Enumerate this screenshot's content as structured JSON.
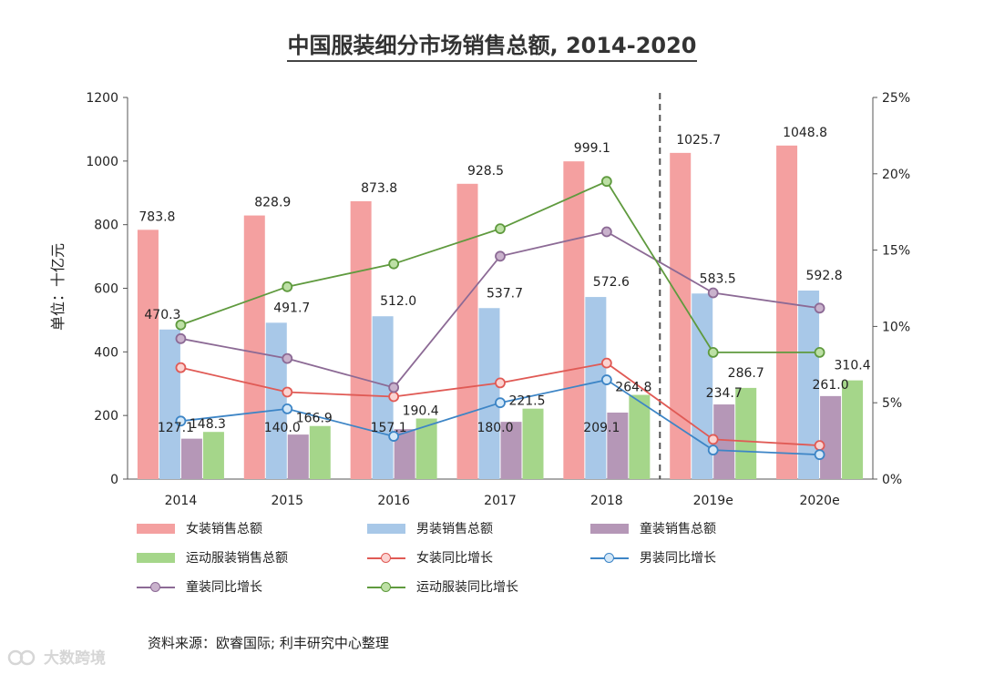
{
  "chart_data": {
    "type": "bar",
    "title": "中国服装细分市场销售总额, 2014-2020",
    "ylabel": "单位：十亿元",
    "ylim": [
      0,
      1200
    ],
    "y2lim": [
      0,
      25
    ],
    "y_ticks": [
      "0",
      "200",
      "400",
      "600",
      "800",
      "1000",
      "1200"
    ],
    "y2_ticks": [
      "0%",
      "5%",
      "10%",
      "15%",
      "20%",
      "25%"
    ],
    "categories": [
      "2014",
      "2015",
      "2016",
      "2017",
      "2018",
      "2019e",
      "2020e"
    ],
    "forecast_divider_after": "2018",
    "bar_series": [
      {
        "name": "女装销售总额",
        "color": "#f4a0a0",
        "values": [
          783.8,
          828.9,
          873.8,
          928.5,
          999.1,
          1025.7,
          1048.8
        ],
        "labels": [
          "783.8",
          "828.9",
          "873.8",
          "928.5",
          "999.1",
          "1025.7",
          "1048.8"
        ]
      },
      {
        "name": "男装销售总额",
        "color": "#a8c8e8",
        "values": [
          470.3,
          491.7,
          512.0,
          537.7,
          572.6,
          583.5,
          592.8
        ],
        "labels": [
          "470.3",
          "491.7",
          "512.0",
          "537.7",
          "572.6",
          "583.5",
          "592.8"
        ]
      },
      {
        "name": "童装销售总额",
        "color": "#b597b7",
        "values": [
          127.1,
          140.0,
          157.1,
          180.0,
          209.1,
          234.7,
          261.0
        ],
        "labels": [
          "127.1",
          "140.0",
          "157.1",
          "180.0",
          "209.1",
          "234.7",
          "261.0"
        ]
      },
      {
        "name": "运动服装销售总额",
        "color": "#a5d68a",
        "values": [
          148.3,
          166.9,
          190.4,
          221.5,
          264.8,
          286.7,
          310.4
        ],
        "labels": [
          "148.3",
          "166.9",
          "190.4",
          "221.5",
          "264.8",
          "286.7",
          "310.4"
        ]
      }
    ],
    "line_series": [
      {
        "name": "女装同比增长",
        "color": "#e05a55",
        "fill": "#fbd3d1",
        "values": [
          7.3,
          5.7,
          5.4,
          6.3,
          7.6,
          2.6,
          2.2
        ]
      },
      {
        "name": "男装同比增长",
        "color": "#3d85c6",
        "fill": "#d4e8f8",
        "values": [
          3.8,
          4.6,
          2.8,
          5.0,
          6.5,
          1.9,
          1.6
        ]
      },
      {
        "name": "童装同比增长",
        "color": "#8c6a95",
        "fill": "#c9b2cc",
        "values": [
          9.2,
          7.9,
          6.0,
          14.6,
          16.2,
          12.2,
          11.2
        ]
      },
      {
        "name": "运动服装同比增长",
        "color": "#5f9a3e",
        "fill": "#bde0a5",
        "values": [
          10.1,
          12.6,
          14.1,
          16.4,
          19.5,
          8.3,
          8.3
        ]
      }
    ]
  },
  "source": "资料来源：欧睿国际; 利丰研究中心整理",
  "watermark": "大数跨境"
}
